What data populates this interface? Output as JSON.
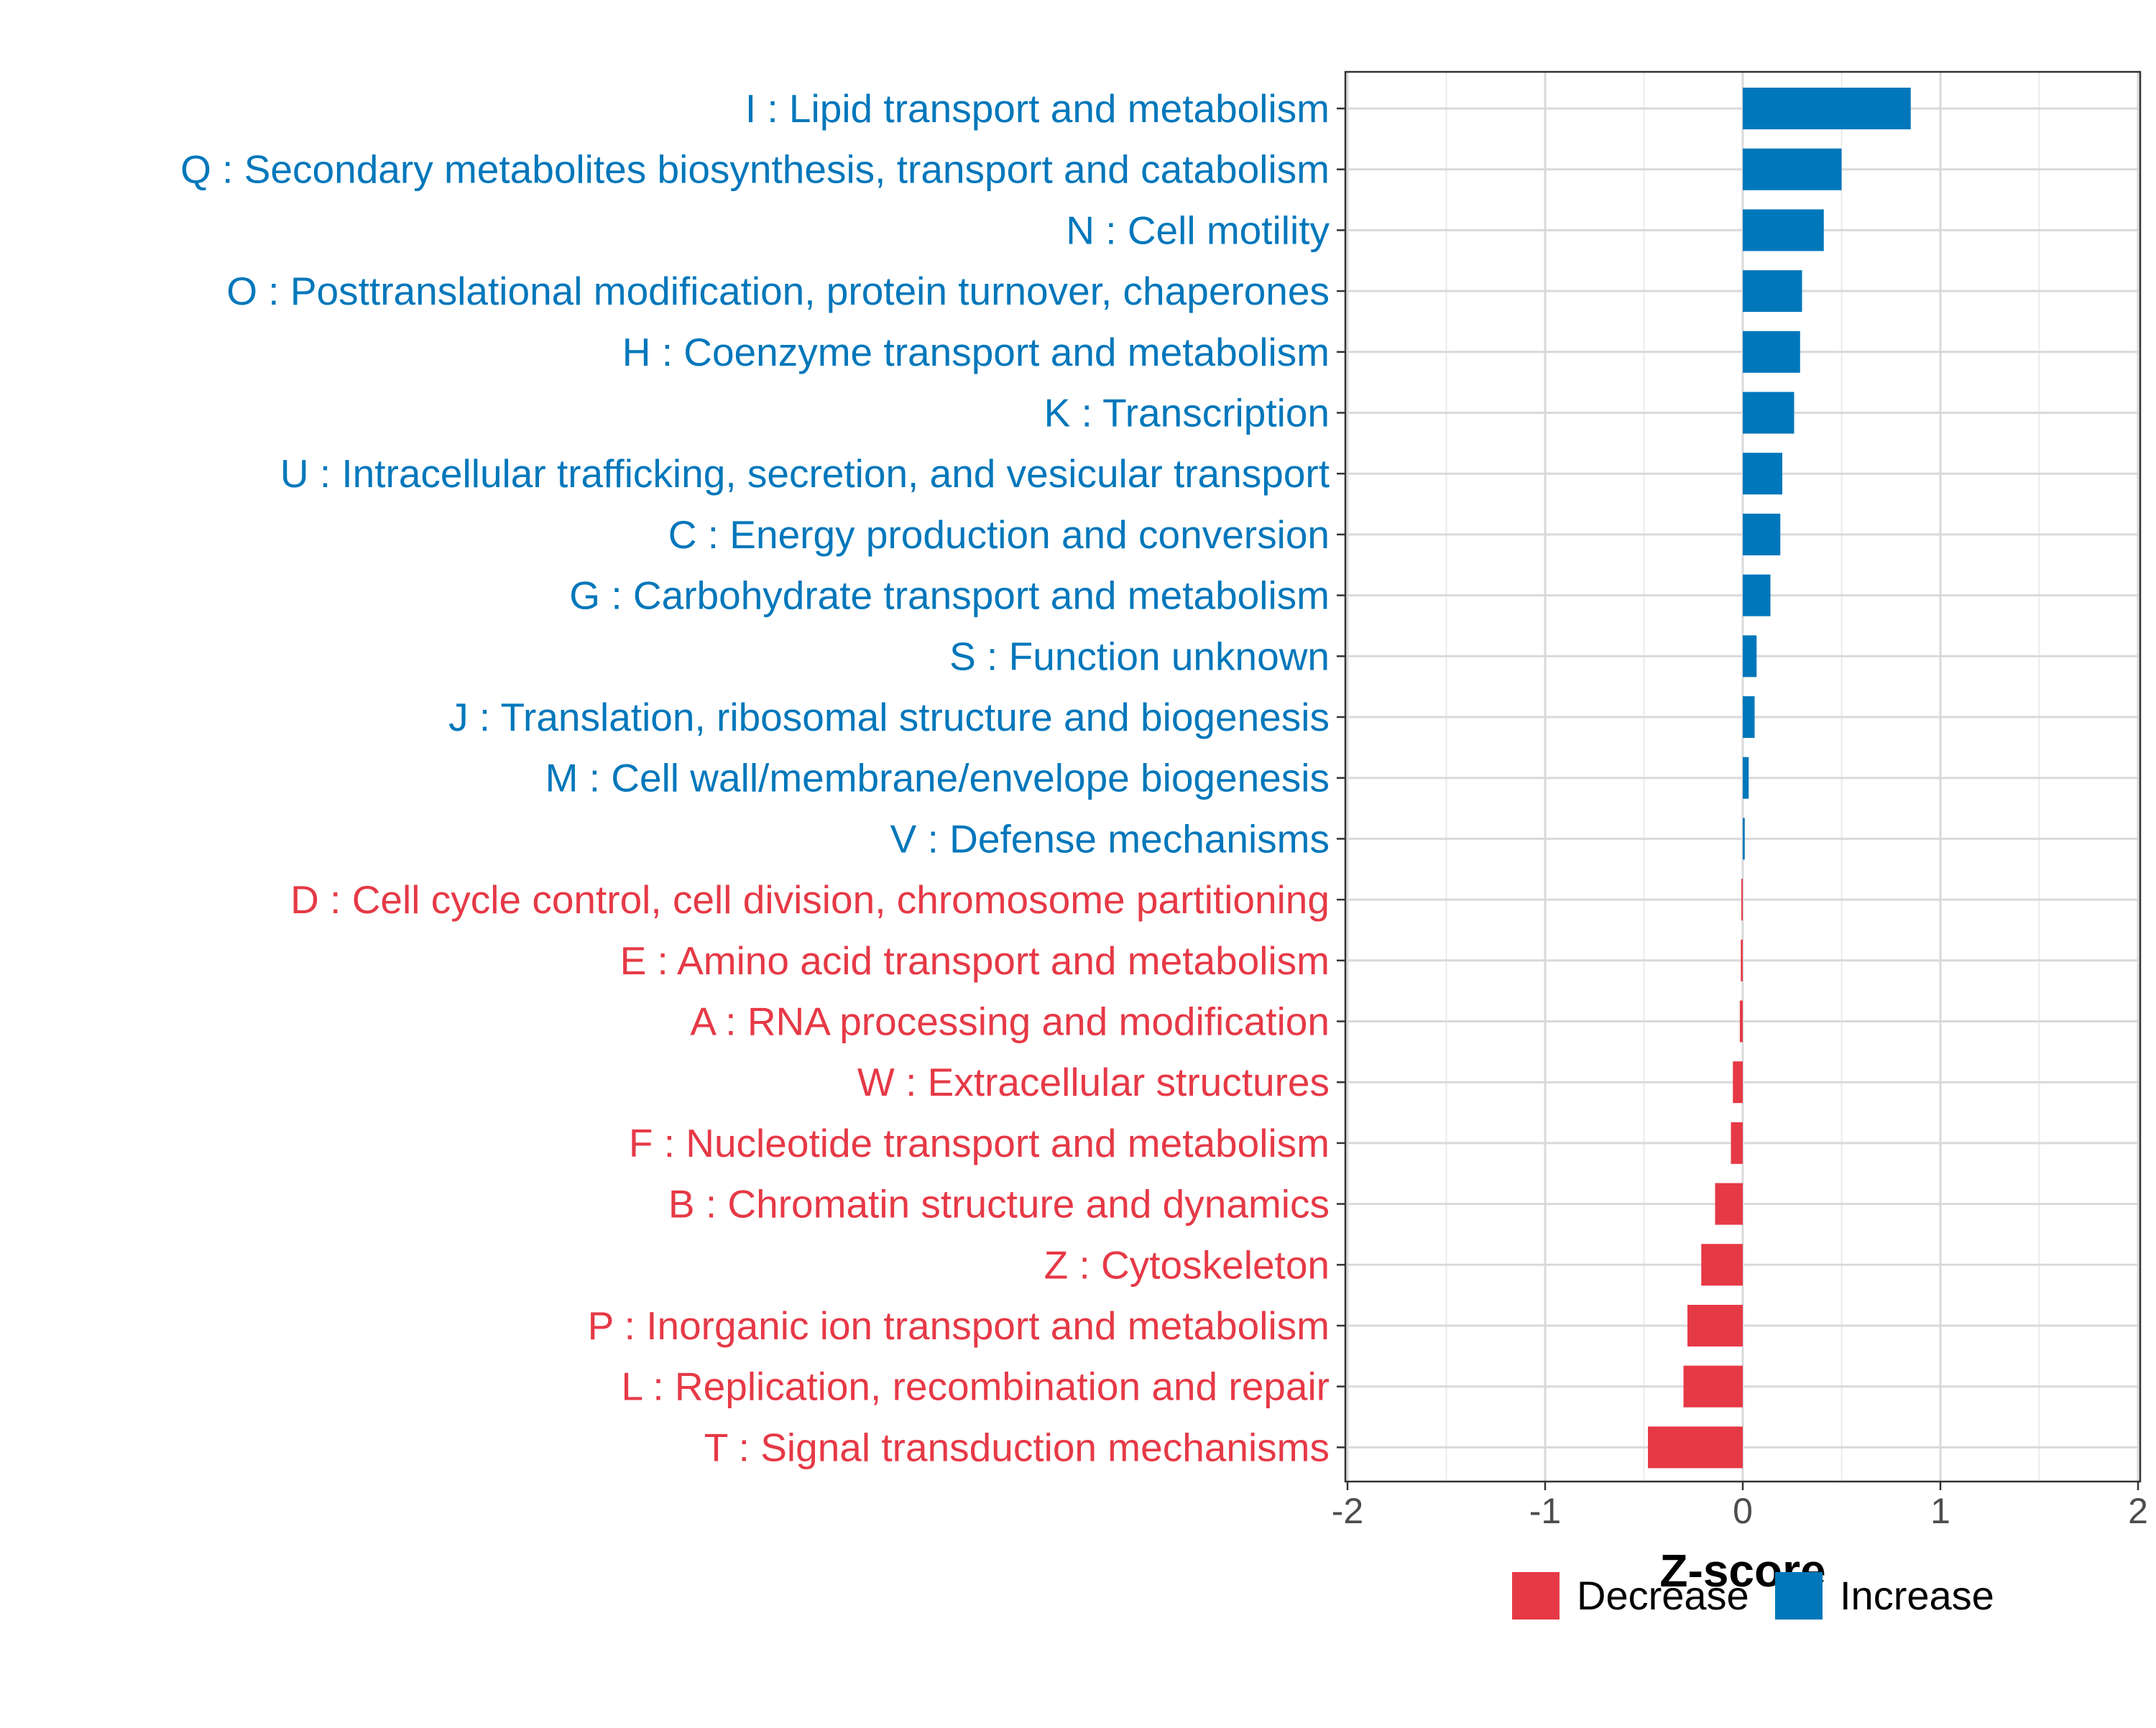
{
  "chart_data": {
    "type": "bar",
    "orientation": "horizontal",
    "title": "",
    "xlabel": "Z-score",
    "ylabel": "",
    "xlim": [
      -2,
      2
    ],
    "xticks": [
      "-2",
      "-1",
      "0",
      "1",
      "2"
    ],
    "grid": true,
    "legend_position": "bottom",
    "colors": {
      "Decrease": "#E63946",
      "Increase": "#0077BB"
    },
    "legend": [
      {
        "name": "Decrease",
        "color": "#E63946"
      },
      {
        "name": "Increase",
        "color": "#0077BB"
      }
    ],
    "categories": [
      "I : Lipid transport and metabolism",
      "Q : Secondary metabolites biosynthesis, transport and catabolism",
      "N : Cell motility",
      "O : Posttranslational modification, protein turnover, chaperones",
      "H : Coenzyme transport and metabolism",
      "K : Transcription",
      "U : Intracellular trafficking, secretion, and vesicular transport",
      "C : Energy production and conversion",
      "G : Carbohydrate transport and metabolism",
      "S : Function unknown",
      "J : Translation, ribosomal structure and biogenesis",
      "M : Cell wall/membrane/envelope biogenesis",
      "V : Defense mechanisms",
      "D : Cell cycle control, cell division, chromosome partitioning",
      "E : Amino acid transport and metabolism",
      "A : RNA processing and modification",
      "W : Extracellular structures",
      "F : Nucleotide transport and metabolism",
      "B : Chromatin structure and dynamics",
      "Z : Cytoskeleton",
      "P : Inorganic ion transport and metabolism",
      "L : Replication, recombination and repair",
      "T : Signal transduction mechanisms"
    ],
    "values": [
      0.85,
      0.5,
      0.41,
      0.3,
      0.29,
      0.26,
      0.2,
      0.19,
      0.14,
      0.07,
      0.06,
      0.03,
      0.01,
      -0.005,
      -0.01,
      -0.015,
      -0.05,
      -0.06,
      -0.14,
      -0.21,
      -0.28,
      -0.3,
      -0.48
    ],
    "groups": [
      "Increase",
      "Increase",
      "Increase",
      "Increase",
      "Increase",
      "Increase",
      "Increase",
      "Increase",
      "Increase",
      "Increase",
      "Increase",
      "Increase",
      "Increase",
      "Decrease",
      "Decrease",
      "Decrease",
      "Decrease",
      "Decrease",
      "Decrease",
      "Decrease",
      "Decrease",
      "Decrease",
      "Decrease"
    ]
  }
}
